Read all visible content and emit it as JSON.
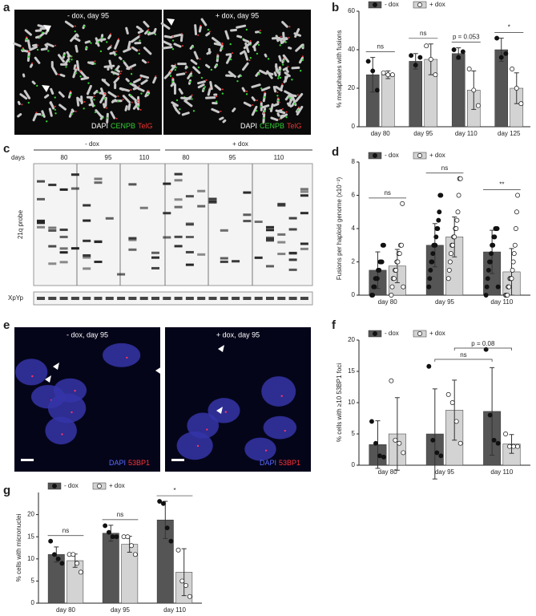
{
  "panel_labels": [
    "a",
    "b",
    "c",
    "d",
    "e",
    "f",
    "g"
  ],
  "panel_a": {
    "left_title": "- dox, day 95",
    "right_title": "+ dox, day 95",
    "stain": [
      "DAPI",
      "CENPB",
      "TelG"
    ]
  },
  "panel_c": {
    "groups": [
      "- dox",
      "+ dox"
    ],
    "days_label": "days",
    "days": [
      "80",
      "95",
      "110",
      "80",
      "95",
      "110"
    ],
    "probe": "21q probe",
    "control": "XpYp"
  },
  "panel_e": {
    "left_title": "- dox, day 95",
    "right_title": "+ dox, day 95",
    "stain": [
      "DAPI",
      "53BP1"
    ]
  },
  "chart_data": [
    {
      "type": "bar",
      "ylabel": "% metaphases with fusions",
      "categories": [
        "day 80",
        "day 95",
        "day 110",
        "day 125"
      ],
      "ylim": [
        0,
        60
      ],
      "yticks": [
        0,
        20,
        40,
        60
      ],
      "series": [
        {
          "name": "- dox",
          "color": "#555555",
          "marker_color": "#111111",
          "values": [
            27,
            34,
            38,
            40
          ],
          "errors": [
            9,
            4,
            3,
            6
          ],
          "points": [
            [
              34,
              29,
              19
            ],
            [
              37,
              32,
              36
            ],
            [
              40,
              36,
              39
            ],
            [
              46,
              36,
              38
            ]
          ]
        },
        {
          "name": "+ dox",
          "color": "#d3d3d3",
          "marker_color": "#ffffff",
          "values": [
            27,
            35,
            19,
            20
          ],
          "errors": [
            2,
            8,
            10,
            8
          ],
          "points": [
            [
              28,
              27,
              27
            ],
            [
              42,
              35,
              27
            ],
            [
              30,
              19,
              11
            ],
            [
              30,
              20,
              12
            ]
          ]
        }
      ],
      "significance": [
        "ns",
        "ns",
        "p = 0.053",
        "*"
      ]
    },
    {
      "type": "bar",
      "ylabel": "Fusions per haploid genome (x10⁻²)",
      "categories": [
        "day 80",
        "day 95",
        "day 110"
      ],
      "ylim": [
        0,
        8
      ],
      "yticks": [
        0,
        2,
        4,
        6,
        8
      ],
      "series": [
        {
          "name": "- dox",
          "color": "#555555",
          "marker_color": "#111111",
          "values": [
            1.5,
            3,
            2.6
          ],
          "errors": [
            1.1,
            1.3,
            1.3
          ],
          "points": [
            [
              0,
              0,
              0.5,
              0.5,
              1,
              1,
              1,
              1.5,
              1.5,
              2,
              2,
              2,
              3,
              3
            ],
            [
              0.5,
              1,
              1.5,
              2,
              2,
              2.5,
              3,
              3,
              3,
              3.5,
              4,
              4,
              4.5,
              5,
              6,
              6
            ],
            [
              0,
              0.5,
              1,
              1.5,
              2,
              2,
              2.5,
              3,
              3,
              3.5,
              3.5,
              4,
              4,
              4,
              0.5
            ]
          ]
        },
        {
          "name": "+ dox",
          "color": "#d3d3d3",
          "marker_color": "#ffffff",
          "values": [
            1.75,
            3.5,
            1.4
          ],
          "errors": [
            1,
            1.2,
            1.4
          ],
          "points": [
            [
              0,
              0.5,
              1,
              1,
              1.5,
              1.5,
              2,
              2,
              2.5,
              2.5,
              3,
              3,
              5.5,
              0.5
            ],
            [
              1,
              1.5,
              2,
              2.5,
              3,
              3,
              3.5,
              3.5,
              4,
              4,
              4.5,
              5,
              6,
              7,
              7
            ],
            [
              0,
              0,
              0,
              0.5,
              0.5,
              1,
              1,
              1,
              1.5,
              2,
              2.5,
              3,
              4,
              5,
              6
            ]
          ]
        }
      ],
      "significance": [
        "ns",
        "ns",
        "**"
      ]
    },
    {
      "type": "bar",
      "ylabel": "% cells with ≥10 53BP1 foci",
      "categories": [
        "day 80",
        "day 95",
        "day 110"
      ],
      "ylim": [
        0,
        20
      ],
      "yticks": [
        0,
        5,
        10,
        15,
        20
      ],
      "series": [
        {
          "name": "- dox",
          "color": "#555555",
          "marker_color": "#111111",
          "values": [
            3.3,
            5,
            8.6
          ],
          "errors": [
            3.8,
            7.2,
            7
          ],
          "points": [
            [
              7,
              3.5,
              1.5,
              1.3
            ],
            [
              15.8,
              4,
              2,
              1.5
            ],
            [
              18.5,
              8,
              4,
              3.5
            ]
          ]
        },
        {
          "name": "+ dox",
          "color": "#d3d3d3",
          "marker_color": "#ffffff",
          "values": [
            5,
            8.8,
            3.4
          ],
          "errors": [
            5.8,
            4.8,
            1.5
          ],
          "points": [
            [
              13.5,
              4,
              3.5,
              2
            ],
            [
              11.3,
              10,
              7,
              3.5
            ],
            [
              5,
              3,
              3,
              3
            ]
          ]
        }
      ],
      "comparisons": [
        "ns",
        "p = 0.08"
      ]
    },
    {
      "type": "bar",
      "ylabel": "% cells with micronuclei",
      "categories": [
        "day 80",
        "day 95",
        "day 110"
      ],
      "ylim": [
        0,
        25
      ],
      "yticks": [
        0,
        5,
        10,
        15,
        20
      ],
      "series": [
        {
          "name": "- dox",
          "color": "#555555",
          "marker_color": "#111111",
          "values": [
            11,
            15.8,
            18.8
          ],
          "errors": [
            1.7,
            1.8,
            4.2
          ],
          "points": [
            [
              14,
              11,
              10,
              9
            ],
            [
              17.5,
              16,
              15,
              15
            ],
            [
              23,
              22.5,
              17,
              14
            ]
          ]
        },
        {
          "name": "+ dox",
          "color": "#d3d3d3",
          "marker_color": "#ffffff",
          "values": [
            9.6,
            13.3,
            7
          ],
          "errors": [
            1.5,
            1.8,
            5.3
          ],
          "points": [
            [
              11,
              11,
              9,
              7
            ],
            [
              15,
              15,
              13,
              11
            ],
            [
              12,
              5,
              4,
              1.5
            ]
          ]
        }
      ],
      "significance": [
        "ns",
        "ns",
        "*"
      ]
    }
  ]
}
